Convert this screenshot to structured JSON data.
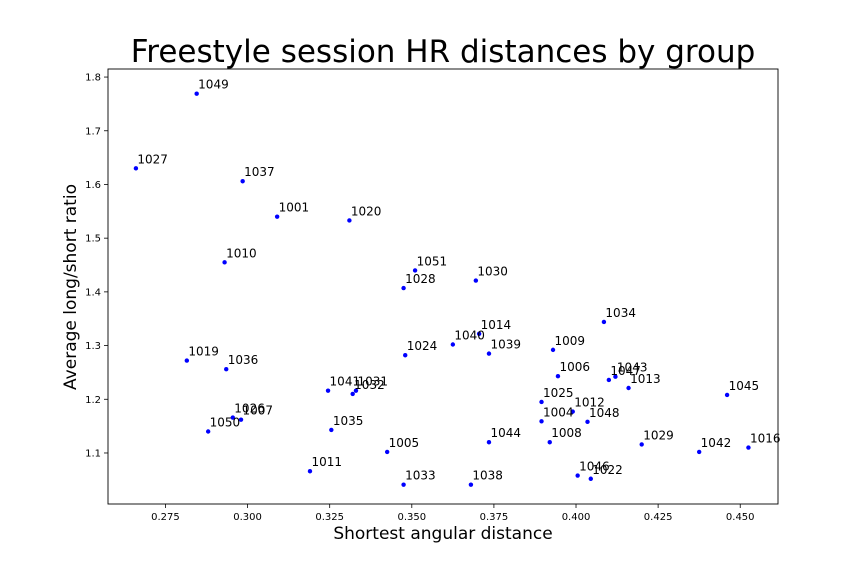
{
  "chart_data": {
    "type": "scatter",
    "title": "Freestyle session HR distances by group",
    "xlabel": "Shortest angular distance",
    "ylabel": "Average long/short ratio",
    "xlim": [
      0.2575,
      0.4615
    ],
    "ylim": [
      1.005,
      1.815
    ],
    "xticks": [
      "0.275",
      "0.300",
      "0.325",
      "0.350",
      "0.375",
      "0.400",
      "0.425",
      "0.450"
    ],
    "yticks": [
      "1.1",
      "1.2",
      "1.3",
      "1.4",
      "1.5",
      "1.6",
      "1.7",
      "1.8"
    ],
    "grid": false,
    "marker_color": "#0000ff",
    "points": [
      {
        "label": "1049",
        "x": 0.2845,
        "y": 1.769
      },
      {
        "label": "1027",
        "x": 0.266,
        "y": 1.63
      },
      {
        "label": "1037",
        "x": 0.2985,
        "y": 1.606
      },
      {
        "label": "1001",
        "x": 0.309,
        "y": 1.54
      },
      {
        "label": "1020",
        "x": 0.331,
        "y": 1.533
      },
      {
        "label": "1010",
        "x": 0.293,
        "y": 1.455
      },
      {
        "label": "1051",
        "x": 0.351,
        "y": 1.44
      },
      {
        "label": "1030",
        "x": 0.3695,
        "y": 1.421
      },
      {
        "label": "1028",
        "x": 0.3475,
        "y": 1.407
      },
      {
        "label": "1034",
        "x": 0.4085,
        "y": 1.344
      },
      {
        "label": "1014",
        "x": 0.3705,
        "y": 1.322
      },
      {
        "label": "1040",
        "x": 0.3625,
        "y": 1.302
      },
      {
        "label": "1009",
        "x": 0.393,
        "y": 1.292
      },
      {
        "label": "1039",
        "x": 0.3735,
        "y": 1.285
      },
      {
        "label": "1024",
        "x": 0.348,
        "y": 1.282
      },
      {
        "label": "1019",
        "x": 0.2815,
        "y": 1.272
      },
      {
        "label": "1036",
        "x": 0.2935,
        "y": 1.256
      },
      {
        "label": "1006",
        "x": 0.3945,
        "y": 1.243
      },
      {
        "label": "1043",
        "x": 0.412,
        "y": 1.242
      },
      {
        "label": "1047",
        "x": 0.41,
        "y": 1.236
      },
      {
        "label": "1013",
        "x": 0.416,
        "y": 1.221
      },
      {
        "label": "1041",
        "x": 0.3245,
        "y": 1.216
      },
      {
        "label": "1031",
        "x": 0.333,
        "y": 1.216
      },
      {
        "label": "1032",
        "x": 0.332,
        "y": 1.21
      },
      {
        "label": "1045",
        "x": 0.446,
        "y": 1.208
      },
      {
        "label": "1025",
        "x": 0.3895,
        "y": 1.195
      },
      {
        "label": "1012",
        "x": 0.399,
        "y": 1.177
      },
      {
        "label": "1026",
        "x": 0.2955,
        "y": 1.166
      },
      {
        "label": "1007",
        "x": 0.298,
        "y": 1.162
      },
      {
        "label": "1004",
        "x": 0.3895,
        "y": 1.159
      },
      {
        "label": "1048",
        "x": 0.4035,
        "y": 1.158
      },
      {
        "label": "1050",
        "x": 0.288,
        "y": 1.14
      },
      {
        "label": "1035",
        "x": 0.3255,
        "y": 1.143
      },
      {
        "label": "1044",
        "x": 0.3735,
        "y": 1.12
      },
      {
        "label": "1008",
        "x": 0.392,
        "y": 1.12
      },
      {
        "label": "1029",
        "x": 0.42,
        "y": 1.116
      },
      {
        "label": "1016",
        "x": 0.4525,
        "y": 1.11
      },
      {
        "label": "1005",
        "x": 0.3425,
        "y": 1.102
      },
      {
        "label": "1042",
        "x": 0.4375,
        "y": 1.102
      },
      {
        "label": "1011",
        "x": 0.319,
        "y": 1.066
      },
      {
        "label": "1046",
        "x": 0.4005,
        "y": 1.058
      },
      {
        "label": "1022",
        "x": 0.4045,
        "y": 1.052
      },
      {
        "label": "1033",
        "x": 0.3475,
        "y": 1.041
      },
      {
        "label": "1038",
        "x": 0.368,
        "y": 1.041
      }
    ]
  }
}
